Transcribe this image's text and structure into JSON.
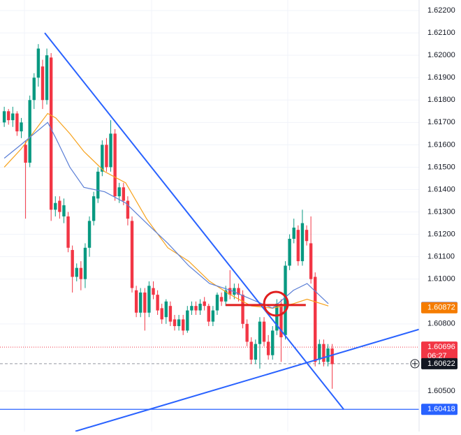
{
  "chart_data": {
    "type": "candlestick",
    "xlim": [
      -1,
      97.4
    ],
    "ylim": [
      1.60319,
      1.62247
    ],
    "yticks": [
      {
        "value": 1.622,
        "label": "1.62200"
      },
      {
        "value": 1.621,
        "label": "1.62100"
      },
      {
        "value": 1.62,
        "label": "1.62000"
      },
      {
        "value": 1.619,
        "label": "1.61900"
      },
      {
        "value": 1.618,
        "label": "1.61800"
      },
      {
        "value": 1.617,
        "label": "1.61700"
      },
      {
        "value": 1.616,
        "label": "1.61600"
      },
      {
        "value": 1.615,
        "label": "1.61500"
      },
      {
        "value": 1.614,
        "label": "1.61400"
      },
      {
        "value": 1.613,
        "label": "1.61300"
      },
      {
        "value": 1.612,
        "label": "1.61200"
      },
      {
        "value": 1.611,
        "label": "1.61100"
      },
      {
        "value": 1.61,
        "label": "1.61000"
      },
      {
        "value": 1.608,
        "label": "1.60800"
      },
      {
        "value": 1.605,
        "label": "1.60500"
      }
    ],
    "grid": true,
    "up_color": "#089981",
    "down_color": "#f23645",
    "open": [
      1.617,
      1.6175,
      1.6171,
      1.6174,
      1.6166,
      1.616,
      1.6152,
      1.618,
      1.619,
      1.6195,
      1.618,
      1.6199,
      1.6131,
      1.6135,
      1.6128,
      1.6128,
      1.6113,
      1.6101,
      1.6105,
      1.61,
      1.6114,
      1.6126,
      1.6136,
      1.6148,
      1.616,
      1.615,
      1.6165,
      1.6137,
      1.6141,
      1.6135,
      1.6126,
      1.6095,
      1.6085,
      1.6094,
      1.6085,
      1.6096,
      1.6093,
      1.6087,
      1.6083,
      1.6088,
      1.6082,
      1.6079,
      1.6082,
      1.6077,
      1.6086,
      1.6088,
      1.6086,
      1.609,
      1.6088,
      1.6081,
      1.6086,
      1.6092,
      1.609,
      1.6096,
      1.6093,
      1.6096,
      1.6093,
      1.608,
      1.6072,
      1.6064,
      1.6071,
      1.6081,
      1.6072,
      1.6066,
      1.6077,
      1.6089,
      1.6075,
      1.6106,
      1.6118,
      1.6122,
      1.6108,
      1.6122,
      1.6116,
      1.6101,
      1.6064,
      1.6071,
      1.6063,
      1.6069
    ],
    "high": [
      1.6177,
      1.6176,
      1.6177,
      1.6175,
      1.6172,
      1.6162,
      1.6182,
      1.6192,
      1.6205,
      1.6198,
      1.6203,
      1.6201,
      1.6137,
      1.6137,
      1.6136,
      1.613,
      1.6115,
      1.6107,
      1.6108,
      1.6116,
      1.6128,
      1.6139,
      1.615,
      1.6162,
      1.6163,
      1.6171,
      1.6167,
      1.6143,
      1.6143,
      1.6137,
      1.6128,
      1.6097,
      1.6096,
      1.6096,
      1.6099,
      1.6099,
      1.6095,
      1.6089,
      1.6091,
      1.609,
      1.6084,
      1.6084,
      1.6084,
      1.6088,
      1.609,
      1.609,
      1.6091,
      1.6092,
      1.6089,
      1.6088,
      1.6094,
      1.6094,
      1.6097,
      1.6104,
      1.6098,
      1.6098,
      1.6095,
      1.6082,
      1.6074,
      1.6073,
      1.6083,
      1.6083,
      1.6075,
      1.6079,
      1.6091,
      1.6091,
      1.6108,
      1.612,
      1.6127,
      1.6124,
      1.6131,
      1.6124,
      1.6128,
      1.6103,
      1.6073,
      1.6073,
      1.6071,
      1.6071
    ],
    "low": [
      1.6168,
      1.6169,
      1.6168,
      1.6164,
      1.6163,
      1.6127,
      1.615,
      1.6176,
      1.6186,
      1.6176,
      1.6178,
      1.6126,
      1.6128,
      1.6127,
      1.6125,
      1.6112,
      1.6094,
      1.6099,
      1.6095,
      1.6096,
      1.611,
      1.6124,
      1.6134,
      1.6146,
      1.6148,
      1.6148,
      1.6135,
      1.6134,
      1.6133,
      1.6124,
      1.6094,
      1.6083,
      1.6083,
      1.6077,
      1.6083,
      1.6091,
      1.6084,
      1.608,
      1.608,
      1.6079,
      1.6077,
      1.6077,
      1.6075,
      1.6076,
      1.6084,
      1.6084,
      1.6084,
      1.6086,
      1.6079,
      1.6079,
      1.6084,
      1.6088,
      1.6088,
      1.6091,
      1.6091,
      1.609,
      1.6078,
      1.607,
      1.6062,
      1.6062,
      1.606,
      1.607,
      1.6064,
      1.6064,
      1.6075,
      1.6063,
      1.6073,
      1.6104,
      1.6116,
      1.6106,
      1.6106,
      1.6115,
      1.6098,
      1.6061,
      1.6062,
      1.6061,
      1.6061,
      1.6051
    ],
    "close": [
      1.6175,
      1.6171,
      1.6174,
      1.6166,
      1.617,
      1.6152,
      1.618,
      1.619,
      1.6203,
      1.618,
      1.62,
      1.6131,
      1.6134,
      1.613,
      1.6133,
      1.6114,
      1.6101,
      1.6105,
      1.61,
      1.6114,
      1.6126,
      1.6137,
      1.6148,
      1.616,
      1.615,
      1.6165,
      1.6137,
      1.6141,
      1.6135,
      1.6127,
      1.6096,
      1.6085,
      1.6094,
      1.6085,
      1.6097,
      1.6093,
      1.6086,
      1.6082,
      1.609,
      1.6081,
      1.6079,
      1.6082,
      1.6077,
      1.6086,
      1.6088,
      1.6086,
      1.6089,
      1.6088,
      1.6081,
      1.6086,
      1.6093,
      1.609,
      1.6095,
      1.6093,
      1.6096,
      1.6093,
      1.608,
      1.6072,
      1.6064,
      1.6071,
      1.6081,
      1.6072,
      1.6066,
      1.6077,
      1.6089,
      1.6074,
      1.6106,
      1.6118,
      1.6123,
      1.6108,
      1.6125,
      1.6117,
      1.61,
      1.6063,
      1.6071,
      1.6063,
      1.6069,
      1.6062
    ],
    "series": [
      {
        "color": "#f7a21b",
        "x": [
          0,
          3.9,
          10.2,
          12.1,
          15.4,
          18.7,
          23.6,
          28.5,
          33.4,
          38.4,
          43.3,
          48.2,
          53.1,
          58,
          63,
          67.9,
          71.1,
          76.1
        ],
        "values": [
          1.615,
          1.6158,
          1.6174,
          1.6172,
          1.6165,
          1.6157,
          1.6148,
          1.6143,
          1.6127,
          1.6114,
          1.6108,
          1.6099,
          1.6093,
          1.6088,
          1.6087,
          1.6089,
          1.6091,
          1.6088
        ]
      },
      {
        "color": "#5b7fd6",
        "x": [
          0,
          3.9,
          10.2,
          12.1,
          15.4,
          18.7,
          23.6,
          28.5,
          33.4,
          38.4,
          43.3,
          48.2,
          53.1,
          58,
          63,
          67.9,
          71.1,
          76.1
        ],
        "values": [
          1.6154,
          1.616,
          1.617,
          1.6163,
          1.615,
          1.6141,
          1.6139,
          1.6134,
          1.6125,
          1.6116,
          1.6106,
          1.6098,
          1.6095,
          1.6091,
          1.6087,
          1.6095,
          1.6098,
          1.6089
        ]
      }
    ],
    "trendlines": [
      {
        "color": "#2962ff",
        "x": [
          9.5,
          79.7
        ],
        "values": [
          1.621,
          1.60418
        ]
      },
      {
        "color": "#2962ff",
        "x": [
          16.7,
          98.2
        ],
        "values": [
          1.6032,
          1.6078
        ]
      },
      {
        "color": "#e01e1e",
        "x": [
          52,
          70.8
        ],
        "values": [
          1.60884,
          1.60884
        ]
      }
    ],
    "circle": {
      "color": "#e01e1e",
      "x": 63.8,
      "value": 1.6089
    },
    "hlines": [
      {
        "color": "#2962ff",
        "value": 1.60418,
        "style": "solid"
      },
      {
        "color": "#f23645",
        "value": 1.60696,
        "style": "dotted"
      },
      {
        "color": "#9598a1",
        "value": 1.60622,
        "style": "dashed"
      }
    ],
    "price_labels": [
      {
        "value": 1.60873,
        "color": "#2962ff"
      },
      {
        "value": 1.60872,
        "color": "#f57c00"
      },
      {
        "value": 1.60696,
        "color": "#f23645"
      },
      {
        "value": 1.60622,
        "color": "#131722"
      },
      {
        "value": 1.60418,
        "color": "#2962ff"
      }
    ],
    "countdown": "06:27"
  }
}
